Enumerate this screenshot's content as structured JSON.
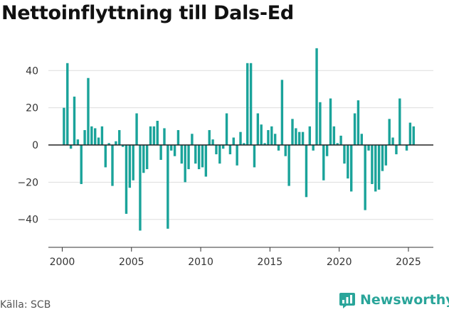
{
  "title": "Nettoinflyttning till Dals-Ed",
  "source": "Källa: SCB",
  "logo_text": "Newsworthy",
  "colors": {
    "bar": "#1aa39a",
    "logo": "#2aa59a",
    "grid": "#dddddd",
    "zero": "#222222"
  },
  "chart_data": {
    "type": "bar",
    "title": "Nettoinflyttning till Dals-Ed",
    "xlabel": "",
    "ylabel": "",
    "xlim": [
      1999.0,
      2026.8
    ],
    "ylim": [
      -55,
      55
    ],
    "yticks": [
      40,
      20,
      0,
      -20,
      -40
    ],
    "ytick_labels": [
      "40",
      "20",
      "0",
      "−20",
      "−40"
    ],
    "xticks": [
      2000,
      2005,
      2010,
      2015,
      2020,
      2025
    ],
    "xtick_labels": [
      "2000",
      "2005",
      "2010",
      "2015",
      "2020",
      "2025"
    ],
    "grid": true,
    "x": [
      2000.125,
      2000.375,
      2000.625,
      2000.875,
      2001.125,
      2001.375,
      2001.625,
      2001.875,
      2002.125,
      2002.375,
      2002.625,
      2002.875,
      2003.125,
      2003.375,
      2003.625,
      2003.875,
      2004.125,
      2004.375,
      2004.625,
      2004.875,
      2005.125,
      2005.375,
      2005.625,
      2005.875,
      2006.125,
      2006.375,
      2006.625,
      2006.875,
      2007.125,
      2007.375,
      2007.625,
      2007.875,
      2008.125,
      2008.375,
      2008.625,
      2008.875,
      2009.125,
      2009.375,
      2009.625,
      2009.875,
      2010.125,
      2010.375,
      2010.625,
      2010.875,
      2011.125,
      2011.375,
      2011.625,
      2011.875,
      2012.125,
      2012.375,
      2012.625,
      2012.875,
      2013.125,
      2013.375,
      2013.625,
      2013.875,
      2014.125,
      2014.375,
      2014.625,
      2014.875,
      2015.125,
      2015.375,
      2015.625,
      2015.875,
      2016.125,
      2016.375,
      2016.625,
      2016.875,
      2017.125,
      2017.375,
      2017.625,
      2017.875,
      2018.125,
      2018.375,
      2018.625,
      2018.875,
      2019.125,
      2019.375,
      2019.625,
      2019.875,
      2020.125,
      2020.375,
      2020.625,
      2020.875,
      2021.125,
      2021.375,
      2021.625,
      2021.875,
      2022.125,
      2022.375,
      2022.625,
      2022.875,
      2023.125,
      2023.375,
      2023.625,
      2023.875,
      2024.125,
      2024.375,
      2024.625,
      2024.875,
      2025.125,
      2025.375
    ],
    "values": [
      20,
      44,
      -2,
      26,
      3,
      -21,
      8,
      36,
      10,
      9,
      4,
      10,
      -12,
      1,
      -22,
      2,
      8,
      -1,
      -37,
      -23,
      -19,
      17,
      -46,
      -15,
      -13,
      10,
      10,
      13,
      -8,
      9,
      -45,
      -3,
      -6,
      8,
      -10,
      -20,
      -13,
      6,
      -10,
      -13,
      -12,
      -17,
      8,
      3,
      -5,
      -10,
      -2,
      17,
      -5,
      4,
      -11,
      7,
      1,
      44,
      44,
      -12,
      17,
      11,
      1,
      8,
      10,
      6,
      -3,
      35,
      -6,
      -22,
      14,
      9,
      7,
      7,
      -28,
      10,
      -3,
      52,
      23,
      -19,
      -6,
      25,
      10,
      1,
      5,
      -10,
      -18,
      -25,
      17,
      24,
      6,
      -35,
      -3,
      -21,
      -25,
      -24,
      -14,
      -11,
      14,
      4,
      -5,
      25,
      0,
      -3,
      12,
      10
    ]
  }
}
